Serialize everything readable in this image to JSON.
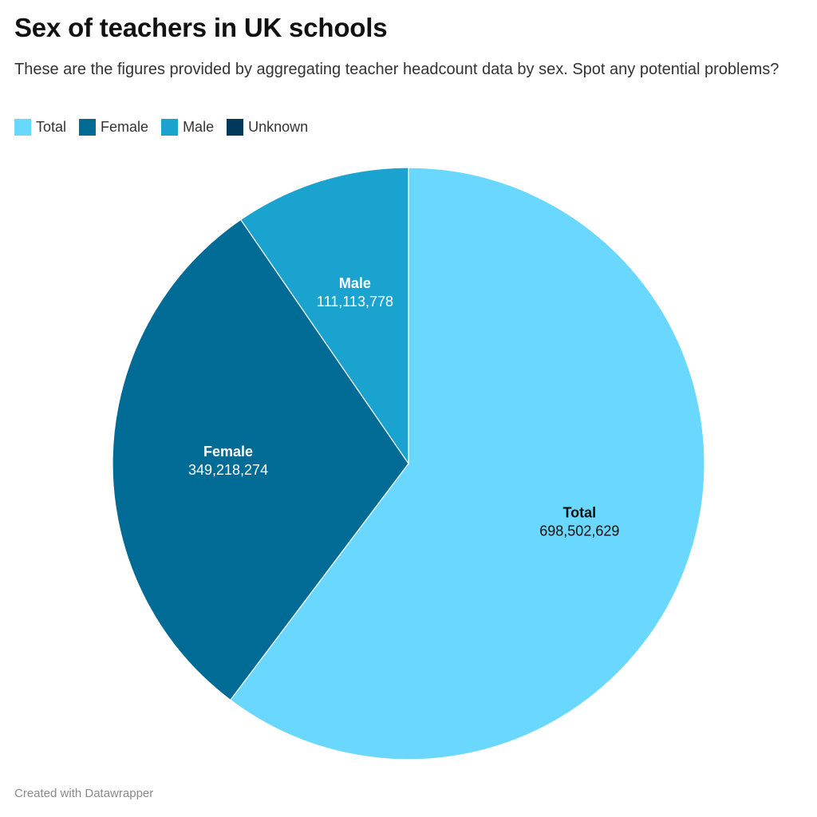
{
  "header": {
    "title": "Sex of teachers in UK schools",
    "subtitle": "These are the figures provided by aggregating teacher headcount data by sex. Spot any potential problems?"
  },
  "footer": {
    "credit": "Created with Datawrapper"
  },
  "chart_data": {
    "type": "pie",
    "title": "Sex of teachers in UK schools",
    "legend_position": "top-left",
    "slices": [
      {
        "label": "Total",
        "value": 698502629,
        "value_label": "698,502,629",
        "color": "#6ad8fe",
        "text_color": "#111111"
      },
      {
        "label": "Female",
        "value": 349218274,
        "value_label": "349,218,274",
        "color": "#006b94",
        "text_color": "#ffffff"
      },
      {
        "label": "Male",
        "value": 111113778,
        "value_label": "111,113,778",
        "color": "#1ba3cf",
        "text_color": "#ffffff"
      },
      {
        "label": "Unknown",
        "value": 0,
        "value_label": "",
        "color": "#00395a",
        "text_color": "#ffffff"
      }
    ]
  }
}
